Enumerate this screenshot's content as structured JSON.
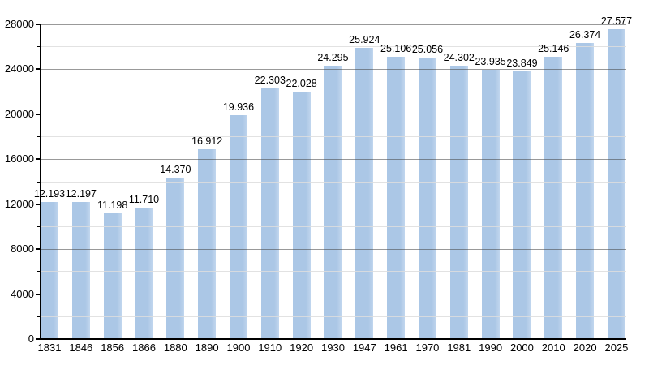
{
  "chart_data": {
    "type": "bar",
    "title": "",
    "xlabel": "",
    "ylabel": "",
    "categories": [
      "1831",
      "1846",
      "1856",
      "1866",
      "1880",
      "1890",
      "1900",
      "1910",
      "1920",
      "1930",
      "1947",
      "1961",
      "1970",
      "1981",
      "1990",
      "2000",
      "2010",
      "2020",
      "2025"
    ],
    "values": [
      12193,
      12197,
      11198,
      11710,
      14370,
      16912,
      19936,
      22303,
      22028,
      24295,
      25924,
      25106,
      25056,
      24302,
      23935,
      23849,
      25146,
      26374,
      27577
    ],
    "value_labels": [
      "12.193",
      "12.197",
      "11.198",
      "11.710",
      "14.370",
      "16.912",
      "19.936",
      "22.303",
      "22.028",
      "24.295",
      "25.924",
      "25.106",
      "25.056",
      "24.302",
      "23.935",
      "23.849",
      "25.146",
      "26.374",
      "27.577"
    ],
    "ylim": [
      0,
      28000
    ],
    "y_major_ticks": [
      0,
      4000,
      8000,
      12000,
      16000,
      20000,
      24000,
      28000
    ],
    "y_tick_labels": [
      "0",
      "4000",
      "8000",
      "12000",
      "16000",
      "20000",
      "24000",
      "28000"
    ],
    "y_minor_ticks": [
      2000,
      6000,
      10000,
      14000,
      18000,
      22000,
      26000
    ],
    "grid": true,
    "legend_position": "none",
    "colors": {
      "bar": "#abc7e6",
      "bar_edge_highlight": "#c1d6ee",
      "axis": "#000000",
      "major_grid": "#999999",
      "minor_grid": "#e3e3e3",
      "label": "#000000",
      "background": "#ffffff"
    }
  }
}
